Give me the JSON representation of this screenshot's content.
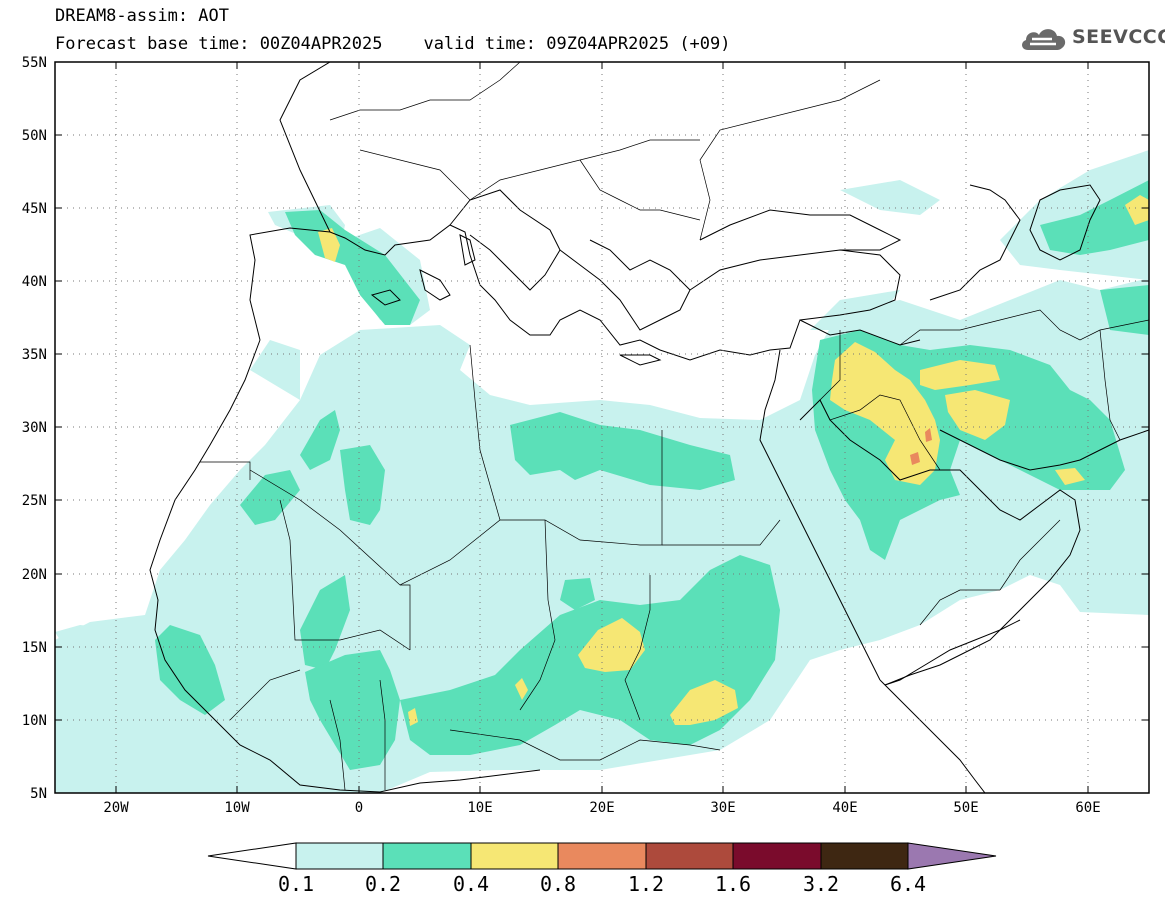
{
  "title": {
    "line1": "DREAM8-assim: AOT",
    "line2": "Forecast base time: 00Z04APR2025    valid time: 09Z04APR2025 (+09)"
  },
  "logo": {
    "text": "SEEVCCC",
    "icon": "cloud-icon"
  },
  "map": {
    "lon_range": [
      -25,
      65
    ],
    "lat_range": [
      5,
      55
    ],
    "lat_labels": [
      "55N",
      "50N",
      "45N",
      "40N",
      "35N",
      "30N",
      "25N",
      "20N",
      "15N",
      "10N",
      "5N"
    ],
    "lon_labels": [
      "20W",
      "10W",
      "0",
      "10E",
      "20E",
      "30E",
      "40E",
      "50E",
      "60E"
    ],
    "gridlines": "dotted"
  },
  "colorbar": {
    "labels": [
      "0.1",
      "0.2",
      "0.4",
      "0.8",
      "1.2",
      "1.6",
      "3.2",
      "6.4"
    ],
    "colors": [
      "#c8f2ee",
      "#5be0b8",
      "#f6e774",
      "#e9895e",
      "#ad4a3c",
      "#7a0b2c",
      "#3e2712"
    ],
    "under_color": "#ffffff",
    "over_color": "#9b78b0"
  }
}
